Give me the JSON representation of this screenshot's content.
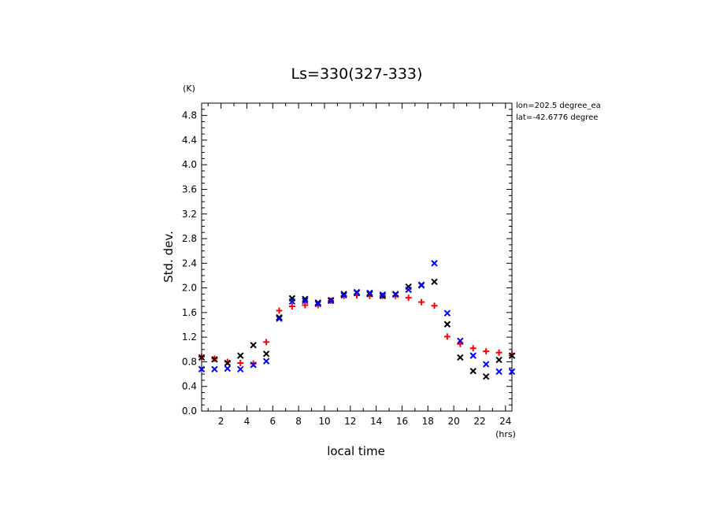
{
  "chart_data": {
    "type": "scatter",
    "title": "Ls=330(327-333)",
    "xlabel": "local time",
    "ylabel": "Std. dev.",
    "x_unit": "(hrs)",
    "y_unit": "(K)",
    "xlim": [
      0.5,
      24.5
    ],
    "ylim": [
      0.0,
      5.0
    ],
    "xticks": [
      "2",
      "4",
      "6",
      "8",
      "10",
      "12",
      "14",
      "16",
      "18",
      "20",
      "22",
      "24"
    ],
    "yticks": [
      "0.0",
      "0.4",
      "0.8",
      "1.2",
      "1.6",
      "2.0",
      "2.4",
      "2.8",
      "3.2",
      "3.6",
      "4.0",
      "4.4",
      "4.8"
    ],
    "annotations": [
      "lon=202.5 degree_ea",
      "lat=-42.6776 degree"
    ],
    "grid": false,
    "x": [
      0.5,
      1.5,
      2.5,
      3.5,
      4.5,
      5.5,
      6.5,
      7.5,
      8.5,
      9.5,
      10.5,
      11.5,
      12.5,
      13.5,
      14.5,
      15.5,
      16.5,
      17.5,
      18.5,
      19.5,
      20.5,
      21.5,
      22.5,
      23.5,
      24.5
    ],
    "series": [
      {
        "marker": "plus",
        "color": "#ff0000",
        "values": [
          0.88,
          0.85,
          0.8,
          0.78,
          0.77,
          1.12,
          1.63,
          1.7,
          1.72,
          1.72,
          1.79,
          1.87,
          1.88,
          1.87,
          1.87,
          1.87,
          1.84,
          1.77,
          1.71,
          1.21,
          1.09,
          1.02,
          0.97,
          0.95,
          0.93
        ]
      },
      {
        "marker": "x",
        "color": "#000000",
        "values": [
          0.87,
          0.84,
          0.78,
          0.9,
          1.07,
          0.93,
          1.52,
          1.83,
          1.82,
          1.76,
          1.8,
          1.9,
          1.93,
          1.9,
          1.87,
          1.9,
          2.02,
          2.05,
          2.1,
          1.41,
          0.87,
          0.65,
          0.56,
          0.83,
          0.9
        ]
      },
      {
        "marker": "x",
        "color": "#0000ff",
        "values": [
          0.68,
          0.68,
          0.69,
          0.68,
          0.75,
          0.81,
          1.5,
          1.78,
          1.79,
          1.74,
          1.79,
          1.88,
          1.92,
          1.92,
          1.89,
          1.89,
          1.97,
          2.04,
          2.4,
          1.59,
          1.14,
          0.9,
          0.76,
          0.64,
          0.64
        ]
      }
    ]
  }
}
